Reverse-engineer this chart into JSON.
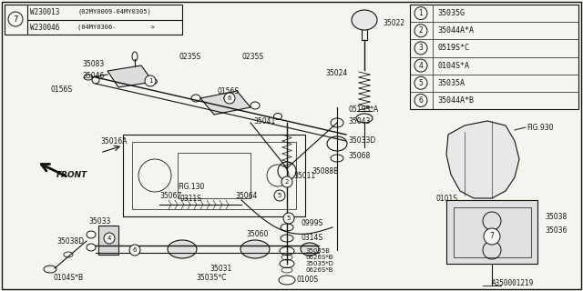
{
  "bg_color": "#f5f5f0",
  "line_color": "#111111",
  "text_color": "#111111",
  "fig_width": 6.4,
  "fig_height": 3.2,
  "dpi": 100,
  "part_labels_table": [
    {
      "num": "1",
      "text": "35035G"
    },
    {
      "num": "2",
      "text": "35044A*A"
    },
    {
      "num": "3",
      "text": "0519S*C"
    },
    {
      "num": "4",
      "text": "0104S*A"
    },
    {
      "num": "5",
      "text": "35035A"
    },
    {
      "num": "6",
      "text": "35044A*B"
    }
  ],
  "note_rows": [
    {
      "code": "W230013",
      "desc": "(02MY0009-04MY0305)"
    },
    {
      "code": "W230046",
      "desc": "(04MY0306-         )"
    }
  ],
  "ref_code": "A350001219"
}
